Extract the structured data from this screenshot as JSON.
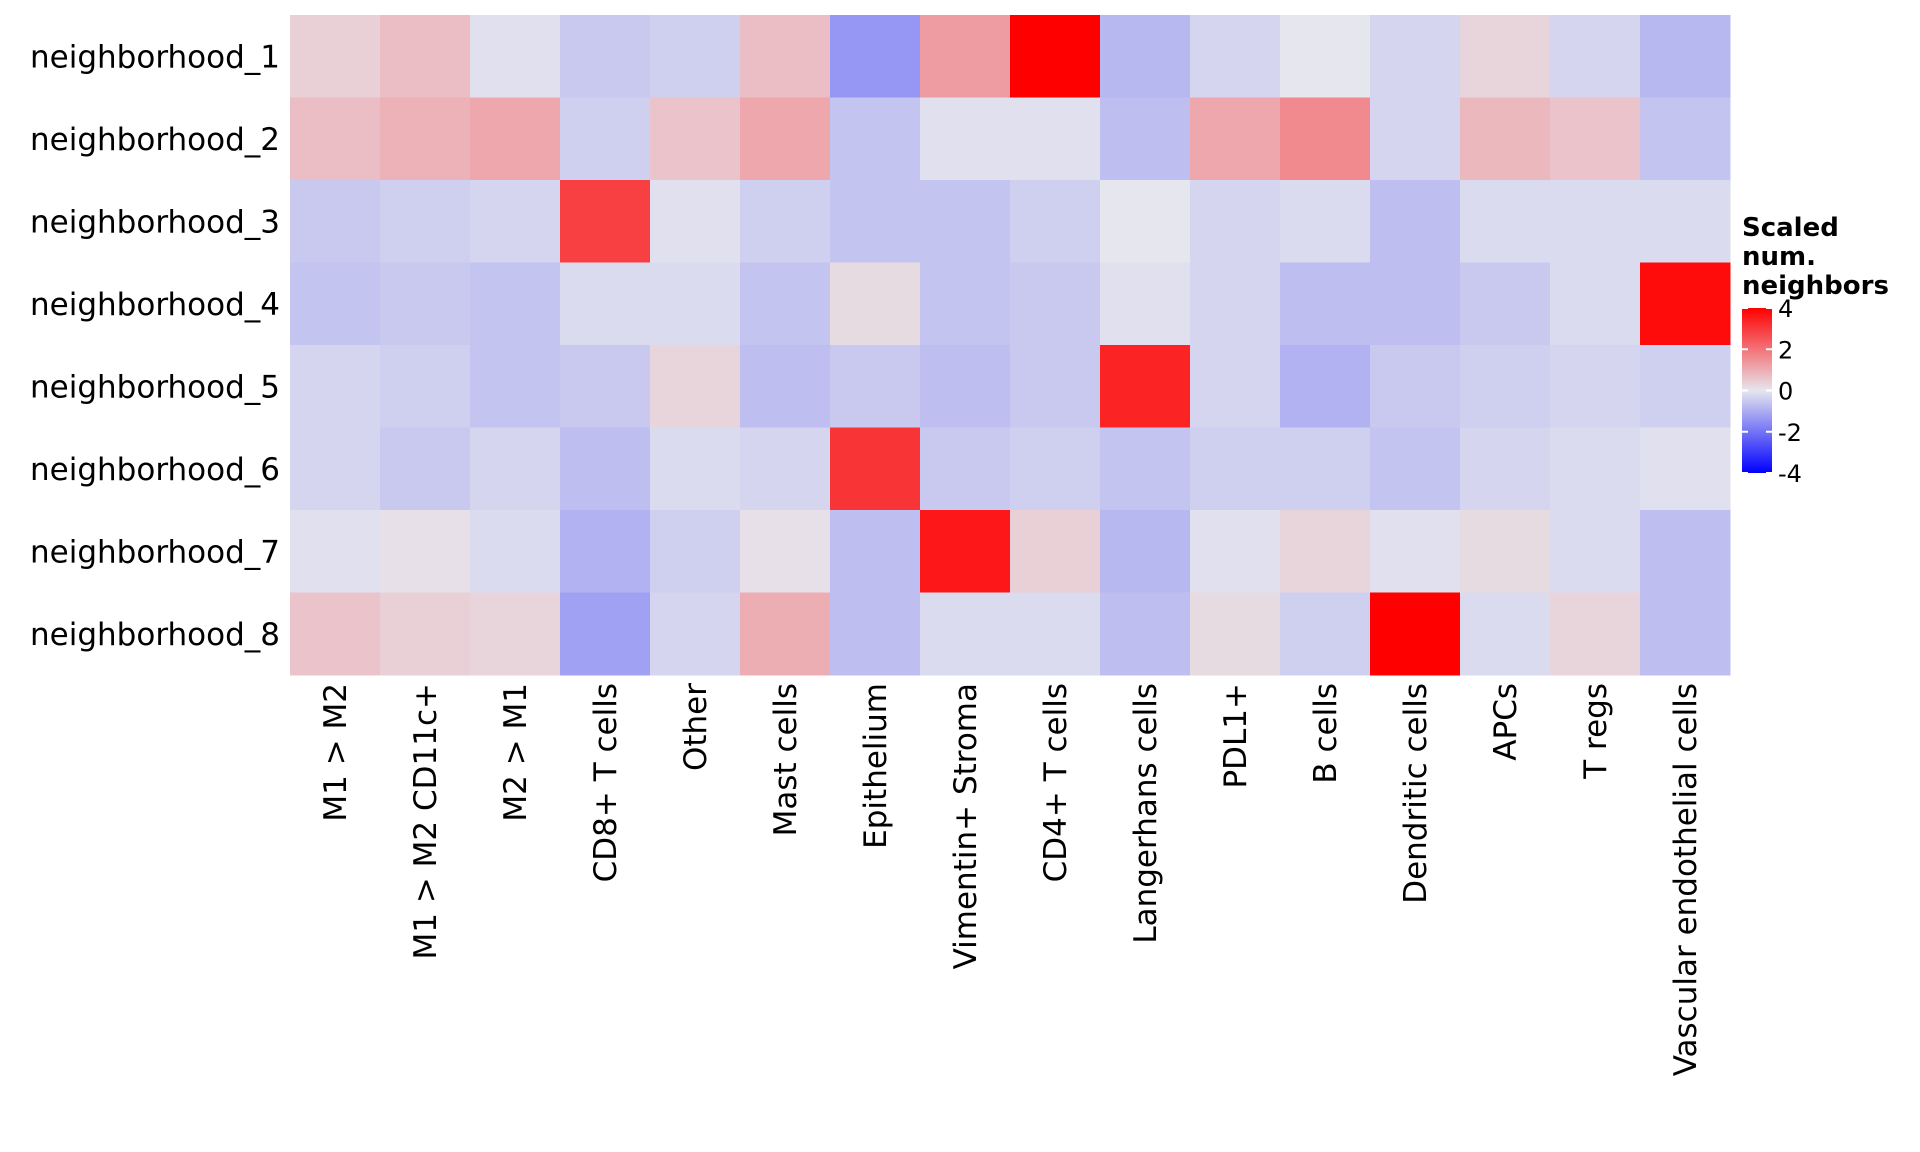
{
  "chart_data": {
    "type": "heatmap",
    "rows": [
      "neighborhood_1",
      "neighborhood_2",
      "neighborhood_3",
      "neighborhood_4",
      "neighborhood_5",
      "neighborhood_6",
      "neighborhood_7",
      "neighborhood_8"
    ],
    "columns": [
      "M1 > M2",
      "M1 > M2 CD11c+",
      "M2 > M1",
      "CD8+ T cells",
      "Other",
      "Mast cells",
      "Epithelium",
      "Vimentin+ Stroma",
      "CD4+ T cells",
      "Langerhans cells",
      "PDL1+",
      "B cells",
      "Dendritic cells",
      "APCs",
      "T regs",
      "Vascular endothelial cells"
    ],
    "values": [
      [
        0.4,
        0.7,
        -0.1,
        -0.5,
        -0.4,
        0.7,
        -1.4,
        1.3,
        4.2,
        -0.8,
        -0.3,
        0.0,
        -0.3,
        0.3,
        -0.3,
        -0.8
      ],
      [
        0.7,
        0.9,
        1.1,
        -0.4,
        0.6,
        1.1,
        -0.6,
        -0.1,
        -0.1,
        -0.7,
        1.1,
        1.6,
        -0.3,
        0.8,
        0.6,
        -0.6
      ],
      [
        -0.5,
        -0.4,
        -0.3,
        2.9,
        -0.1,
        -0.4,
        -0.6,
        -0.6,
        -0.4,
        0.0,
        -0.3,
        -0.2,
        -0.7,
        -0.2,
        -0.2,
        -0.2
      ],
      [
        -0.6,
        -0.5,
        -0.6,
        -0.2,
        -0.2,
        -0.6,
        0.2,
        -0.6,
        -0.5,
        -0.1,
        -0.3,
        -0.7,
        -0.7,
        -0.5,
        -0.2,
        3.8
      ],
      [
        -0.3,
        -0.4,
        -0.6,
        -0.5,
        0.3,
        -0.7,
        -0.5,
        -0.7,
        -0.5,
        3.4,
        -0.3,
        -0.9,
        -0.5,
        -0.4,
        -0.3,
        -0.4
      ],
      [
        -0.3,
        -0.5,
        -0.3,
        -0.7,
        -0.2,
        -0.3,
        3.1,
        -0.5,
        -0.4,
        -0.6,
        -0.4,
        -0.4,
        -0.6,
        -0.3,
        -0.2,
        -0.1
      ],
      [
        -0.1,
        0.1,
        -0.2,
        -0.9,
        -0.4,
        0.1,
        -0.7,
        3.6,
        0.4,
        -0.8,
        -0.1,
        0.3,
        -0.1,
        0.2,
        -0.2,
        -0.7
      ],
      [
        0.6,
        0.4,
        0.3,
        -1.2,
        -0.3,
        1.0,
        -0.7,
        -0.2,
        -0.2,
        -0.7,
        0.2,
        -0.4,
        4.2,
        -0.2,
        0.3,
        -0.7
      ]
    ],
    "legend": {
      "title_lines": [
        "Scaled",
        "num.",
        "neighbors"
      ],
      "ticks": [
        4,
        2,
        0,
        -2,
        -4
      ],
      "tick_labels": [
        "4",
        "2",
        "0",
        "-2",
        "-4"
      ],
      "range": [
        -4,
        4
      ],
      "placement": "right"
    },
    "colors": {
      "low": "#0000ff",
      "mid": "#e6e6ee",
      "high": "#ff0000",
      "background": "#ffffff"
    },
    "grid": false
  }
}
